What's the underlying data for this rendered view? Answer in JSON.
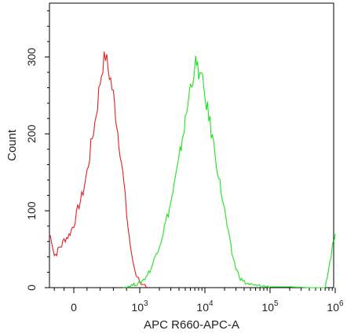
{
  "chart_data": {
    "type": "line",
    "title": "",
    "xlabel": "APC R660-APC-A",
    "ylabel": "Count",
    "xscale": "biexponential",
    "xlim": [
      -500,
      1000000
    ],
    "ylim": [
      0,
      370
    ],
    "grid": false,
    "legend": "none",
    "y_ticks": [
      0,
      100,
      200,
      300
    ],
    "x_ticks": [
      {
        "label": "0",
        "sup": "",
        "value": 0
      },
      {
        "label": "10",
        "sup": "3",
        "value": 1000
      },
      {
        "label": "10",
        "sup": "4",
        "value": 10000
      },
      {
        "label": "10",
        "sup": "5",
        "value": 100000
      },
      {
        "label": "10",
        "sup": "6",
        "value": 1000000
      }
    ],
    "series": [
      {
        "color": "#e02020",
        "points": [
          [
            -500,
            70
          ],
          [
            -450,
            60
          ],
          [
            -400,
            42
          ],
          [
            -350,
            45
          ],
          [
            -300,
            52
          ],
          [
            -250,
            55
          ],
          [
            -200,
            62
          ],
          [
            -150,
            65
          ],
          [
            -100,
            68
          ],
          [
            -50,
            75
          ],
          [
            0,
            82
          ],
          [
            40,
            95
          ],
          [
            80,
            108
          ],
          [
            120,
            118
          ],
          [
            160,
            132
          ],
          [
            200,
            150
          ],
          [
            240,
            172
          ],
          [
            280,
            195
          ],
          [
            320,
            215
          ],
          [
            360,
            240
          ],
          [
            400,
            268
          ],
          [
            440,
            290
          ],
          [
            480,
            302
          ],
          [
            520,
            285
          ],
          [
            560,
            270
          ],
          [
            600,
            250
          ],
          [
            650,
            215
          ],
          [
            700,
            180
          ],
          [
            760,
            135
          ],
          [
            820,
            80
          ],
          [
            880,
            40
          ],
          [
            940,
            18
          ],
          [
            1000,
            9
          ],
          [
            1050,
            5
          ],
          [
            1100,
            3
          ],
          [
            1200,
            2
          ],
          [
            1300,
            0
          ]
        ]
      },
      {
        "color": "#22e022",
        "points": [
          [
            750,
            0
          ],
          [
            1000,
            6
          ],
          [
            1200,
            12
          ],
          [
            1500,
            25
          ],
          [
            1800,
            45
          ],
          [
            2100,
            60
          ],
          [
            2500,
            85
          ],
          [
            3000,
            110
          ],
          [
            3500,
            140
          ],
          [
            4000,
            165
          ],
          [
            4500,
            195
          ],
          [
            5000,
            215
          ],
          [
            5500,
            240
          ],
          [
            6000,
            262
          ],
          [
            6500,
            275
          ],
          [
            7200,
            290
          ],
          [
            8000,
            282
          ],
          [
            8800,
            272
          ],
          [
            9600,
            258
          ],
          [
            10500,
            240
          ],
          [
            11500,
            222
          ],
          [
            13000,
            195
          ],
          [
            15000,
            165
          ],
          [
            17000,
            135
          ],
          [
            20000,
            100
          ],
          [
            23000,
            70
          ],
          [
            26000,
            45
          ],
          [
            30000,
            25
          ],
          [
            35000,
            12
          ],
          [
            42000,
            6
          ],
          [
            55000,
            3
          ],
          [
            75000,
            2
          ],
          [
            100000,
            1
          ],
          [
            200000,
            1
          ],
          [
            400000,
            0
          ],
          [
            700000,
            0
          ],
          [
            900000,
            50
          ],
          [
            1000000,
            70
          ]
        ]
      }
    ]
  }
}
